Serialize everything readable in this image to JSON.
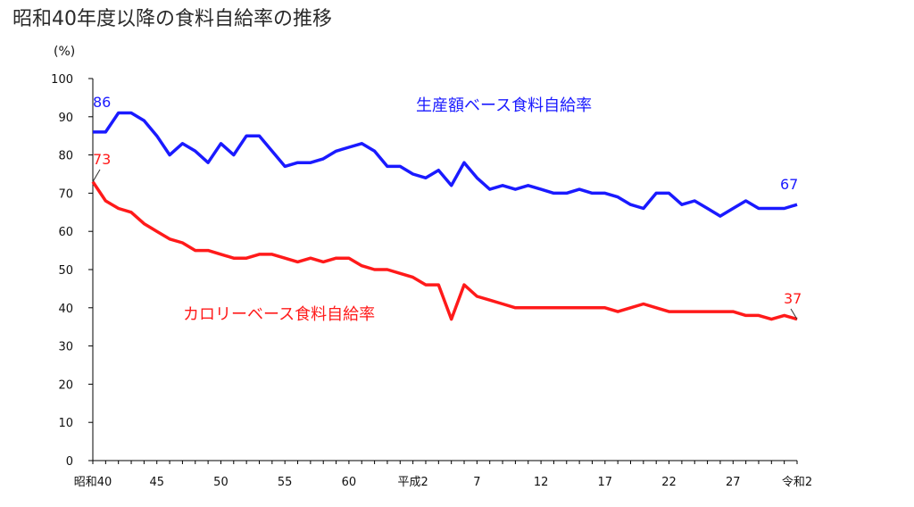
{
  "chart_data": {
    "type": "line",
    "title": "昭和40年度以降の食料自給率の推移",
    "ylabel": "(%)",
    "xlabel": "",
    "ylim": [
      0,
      100
    ],
    "yticks": [
      "0",
      "10",
      "20",
      "30",
      "40",
      "50",
      "60",
      "70",
      "80",
      "90",
      "100"
    ],
    "xtick_labels": [
      "昭和40",
      "45",
      "50",
      "55",
      "60",
      "平成2",
      "7",
      "12",
      "17",
      "22",
      "27",
      "令和2"
    ],
    "x": [
      "昭和40",
      "昭和41",
      "昭和42",
      "昭和43",
      "昭和44",
      "昭和45",
      "昭和46",
      "昭和47",
      "昭和48",
      "昭和49",
      "昭和50",
      "昭和51",
      "昭和52",
      "昭和53",
      "昭和54",
      "昭和55",
      "昭和56",
      "昭和57",
      "昭和58",
      "昭和59",
      "昭和60",
      "昭和61",
      "昭和62",
      "昭和63",
      "平成元",
      "平成2",
      "平成3",
      "平成4",
      "平成5",
      "平成6",
      "平成7",
      "平成8",
      "平成9",
      "平成10",
      "平成11",
      "平成12",
      "平成13",
      "平成14",
      "平成15",
      "平成16",
      "平成17",
      "平成18",
      "平成19",
      "平成20",
      "平成21",
      "平成22",
      "平成23",
      "平成24",
      "平成25",
      "平成26",
      "平成27",
      "平成28",
      "平成29",
      "平成30",
      "令和元",
      "令和2"
    ],
    "grid": false,
    "series": [
      {
        "name": "生産額ベース食料自給率",
        "color": "#1a1aff",
        "values": [
          86,
          86,
          91,
          91,
          89,
          85,
          80,
          83,
          81,
          78,
          83,
          80,
          85,
          85,
          81,
          77,
          78,
          78,
          79,
          81,
          82,
          83,
          81,
          77,
          77,
          75,
          74,
          76,
          72,
          78,
          74,
          71,
          72,
          71,
          72,
          71,
          70,
          70,
          71,
          70,
          70,
          69,
          67,
          66,
          70,
          70,
          67,
          68,
          66,
          64,
          66,
          68,
          66,
          66,
          66,
          67
        ],
        "start_label": "86",
        "end_label": "67"
      },
      {
        "name": "カロリーベース食料自給率",
        "color": "#ff1a1a",
        "values": [
          73,
          68,
          66,
          65,
          62,
          60,
          58,
          57,
          55,
          55,
          54,
          53,
          53,
          54,
          54,
          53,
          52,
          53,
          52,
          53,
          53,
          51,
          50,
          50,
          49,
          48,
          46,
          46,
          37,
          46,
          43,
          42,
          41,
          40,
          40,
          40,
          40,
          40,
          40,
          40,
          40,
          39,
          40,
          41,
          40,
          39,
          39,
          39,
          39,
          39,
          39,
          38,
          38,
          37,
          38,
          37
        ],
        "start_label": "73",
        "end_label": "37"
      }
    ]
  }
}
